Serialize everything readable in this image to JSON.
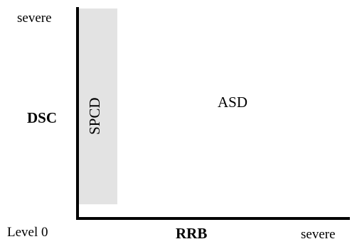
{
  "axes": {
    "y": {
      "title": "DSC",
      "max_label": "severe"
    },
    "x": {
      "title": "RRB",
      "max_label": "severe"
    },
    "origin_label": "Level 0"
  },
  "regions": [
    {
      "id": "spcd",
      "label": "SPCD",
      "fill": "#e3e3e3"
    },
    {
      "id": "asd",
      "label": "ASD",
      "fill": "#ffffff"
    }
  ],
  "colors": {
    "axis": "#000000",
    "background": "#ffffff"
  }
}
